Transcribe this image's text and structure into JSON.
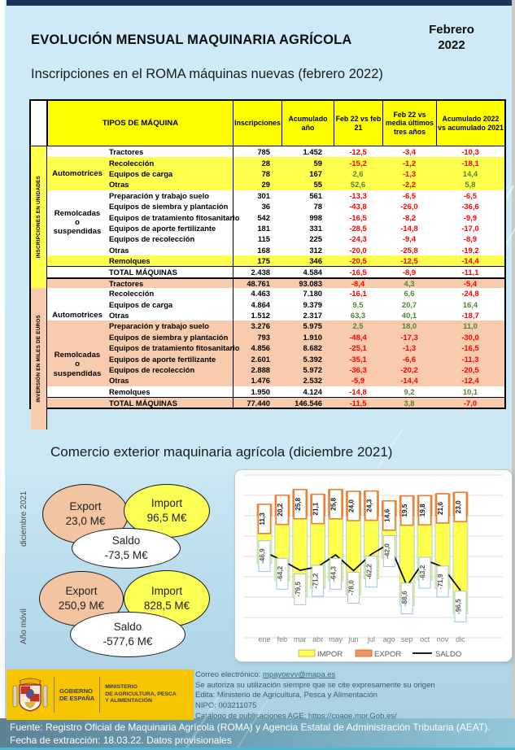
{
  "page": {
    "title": "EVOLUCIÓN MENSUAL MAQUINARIA AGRÍCOLA",
    "date": "Febrero\n2022",
    "subtitle": "Inscripciones en el ROMA máquinas nuevas (febrero 2022)"
  },
  "colors": {
    "header_yellow": "#ffff00",
    "row_yellow": "#ffff4d",
    "row_salmon": "#f8cbad",
    "negative": "#ff0000",
    "positive": "#548235",
    "impor_fill": "#ffff4d",
    "expor_stroke": "#ed7d31",
    "saldo_line": "#000000"
  },
  "table": {
    "col_headers": [
      "TIPOS DE MÁQUINA",
      "Inscripciones",
      "Acumulado año",
      "Feb 22 vs feb 21",
      "Feb 22 vs media últimos tres años",
      "Acumulado 2022 vs acumulado 2021"
    ],
    "sections": [
      {
        "band": "INSCRIPCIONES EN UNIDADES",
        "band_bg": "#ffff4d",
        "plain_color": "#ffffff",
        "tint_color": "#ffff4d",
        "groups": [
          {
            "label": "Automotrices",
            "from": 1,
            "span": 3
          },
          {
            "label": "Remolcadas\no\nsuspendidas",
            "from": 4,
            "span": 6
          }
        ],
        "rows": [
          {
            "name": "Tractores",
            "shade": "plain",
            "values": [
              "785",
              "1.452",
              "-12,5",
              "-3,4",
              "-10,3"
            ]
          },
          {
            "name": "Recolección",
            "shade": "tint",
            "values": [
              "28",
              "59",
              "-15,2",
              "-1,2",
              "-18,1"
            ]
          },
          {
            "name": "Equipos de carga",
            "shade": "tint",
            "values": [
              "78",
              "167",
              "2,6",
              "-1,3",
              "14,4"
            ]
          },
          {
            "name": "Otras",
            "shade": "tint",
            "values": [
              "29",
              "55",
              "52,6",
              "-2,2",
              "5,8"
            ]
          },
          {
            "name": "Preparación y trabajo suelo",
            "shade": "plain",
            "values": [
              "301",
              "561",
              "-13,3",
              "-6,5",
              "-6,5"
            ]
          },
          {
            "name": "Equipos de siembra y plantación",
            "shade": "plain",
            "values": [
              "36",
              "78",
              "-43,8",
              "-26,0",
              "-36,6"
            ]
          },
          {
            "name": "Equipos de tratamiento fitosanitario",
            "shade": "plain",
            "values": [
              "542",
              "998",
              "-16,5",
              "-8,2",
              "-9,9"
            ]
          },
          {
            "name": "Equipos de aporte fertilizante",
            "shade": "plain",
            "values": [
              "181",
              "331",
              "-28,5",
              "-14,8",
              "-17,0"
            ]
          },
          {
            "name": "Equipos de recolección",
            "shade": "plain",
            "values": [
              "115",
              "225",
              "-24,3",
              "-9,4",
              "-8,9"
            ]
          },
          {
            "name": "Otras",
            "shade": "plain",
            "values": [
              "168",
              "312",
              "-20,0",
              "-25,8",
              "-19,2"
            ]
          },
          {
            "name": "Remolques",
            "shade": "tint",
            "values": [
              "175",
              "346",
              "-20,5",
              "-12,5",
              "-14,4"
            ]
          }
        ],
        "total": {
          "name": "TOTAL MÁQUINAS",
          "shade": "plain",
          "values": [
            "2.438",
            "4.584",
            "-16,5",
            "-8,9",
            "-11,1"
          ]
        }
      },
      {
        "band": "INVERSIÓN EN MILES DE EUROS",
        "band_bg": "#f8cbad",
        "plain_color": "#ffffff",
        "tint_color": "#f8cbad",
        "groups": [
          {
            "label": "Automotrices",
            "from": 1,
            "span": 3
          },
          {
            "label": "Remolcadas\no\nsuspendidas",
            "from": 4,
            "span": 6
          }
        ],
        "rows": [
          {
            "name": "Tractores",
            "shade": "tint",
            "values": [
              "48.761",
              "93.083",
              "-8,4",
              "4,3",
              "-5,4"
            ]
          },
          {
            "name": "Recolección",
            "shade": "plain",
            "values": [
              "4.463",
              "7.180",
              "-16,1",
              "6,6",
              "-24,8"
            ]
          },
          {
            "name": "Equipos de carga",
            "shade": "plain",
            "values": [
              "4.864",
              "9.379",
              "9,5",
              "20,7",
              "16,4"
            ]
          },
          {
            "name": "Otras",
            "shade": "plain",
            "values": [
              "1.512",
              "2.317",
              "63,3",
              "40,1",
              "-18,7"
            ]
          },
          {
            "name": "Preparación y trabajo suelo",
            "shade": "tint",
            "values": [
              "3.276",
              "5.975",
              "2,5",
              "18,0",
              "11,0"
            ]
          },
          {
            "name": "Equipos de siembra y plantación",
            "shade": "tint",
            "values": [
              "793",
              "1.910",
              "-48,4",
              "-17,3",
              "-30,0"
            ]
          },
          {
            "name": "Equipos de tratamiento fitosanitario",
            "shade": "tint",
            "values": [
              "4.856",
              "8.682",
              "-25,1",
              "-1,3",
              "-16,5"
            ]
          },
          {
            "name": "Equipos de aporte fertilizante",
            "shade": "tint",
            "values": [
              "2.601",
              "5.392",
              "-35,1",
              "-6,6",
              "-11,3"
            ]
          },
          {
            "name": "Equipos de recolección",
            "shade": "tint",
            "values": [
              "2.888",
              "5.972",
              "-36,3",
              "-20,2",
              "-20,5"
            ]
          },
          {
            "name": "Otras",
            "shade": "tint",
            "values": [
              "1.476",
              "2.532",
              "-5,9",
              "-14,4",
              "-12,4"
            ]
          },
          {
            "name": "Remolques",
            "shade": "plain",
            "values": [
              "1.950",
              "4.124",
              "-14,8",
              "9,2",
              "10,1"
            ]
          }
        ],
        "total": {
          "name": "TOTAL MÁQUINAS",
          "shade": "tint",
          "values": [
            "77.440",
            "146.546",
            "-11,5",
            "3,8",
            "-7,0"
          ]
        }
      }
    ]
  },
  "trade": {
    "title": "Comercio exterior maquinaria agrícola (diciembre 2021)",
    "groups": [
      {
        "period": "diciembre 2021",
        "export": {
          "label": "Export",
          "value": "23,0 M€"
        },
        "import": {
          "label": "Import",
          "value": "96,5 M€"
        },
        "saldo": {
          "label": "Saldo",
          "value": "-73,5 M€"
        }
      },
      {
        "period": "Año móvil",
        "export": {
          "label": "Export",
          "value": "250,9 M€"
        },
        "import": {
          "label": "Import",
          "value": "828,5 M€"
        },
        "saldo": {
          "label": "Saldo",
          "value": "-577,6 M€"
        }
      }
    ]
  },
  "chart_data": {
    "type": "bar",
    "categories": [
      "ene",
      "feb",
      "mar",
      "abr",
      "may",
      "jun",
      "jul",
      "ago",
      "sep",
      "oct",
      "nov",
      "dic"
    ],
    "series": [
      {
        "name": "IMPOR",
        "type": "bar",
        "color": "#ffff4d",
        "values": [
          -46.9,
          -64.2,
          -79.5,
          -71.2,
          -64.3,
          -78.0,
          -62.2,
          -42.0,
          -88.6,
          -63.2,
          -71.9,
          -96.5
        ],
        "labels": [
          "-46,9",
          "-64,2",
          "-79,5",
          "-71,2",
          "-64,3",
          "-78,0",
          "-62,2",
          "-42,0",
          "-88,6",
          "-63,2",
          "-71,9",
          "-96,5"
        ]
      },
      {
        "name": "EXPOR",
        "type": "bar",
        "color": "#f0945a",
        "values": [
          11.3,
          20.2,
          25.8,
          21.1,
          25.8,
          24.0,
          24.3,
          14.6,
          19.5,
          19.8,
          21.6,
          23.0
        ],
        "labels": [
          "11,3",
          "20,2",
          "25,8",
          "21,1",
          "25,8",
          "24,0",
          "24,3",
          "14,6",
          "19,5",
          "19,8",
          "21,6",
          "23,0"
        ]
      },
      {
        "name": "SALDO",
        "type": "line",
        "color": "#000000",
        "values": [
          -35.6,
          -44.0,
          -53.7,
          -50.1,
          -38.5,
          -54.0,
          -37.9,
          -27.4,
          -69.1,
          -43.4,
          -50.3,
          -73.5
        ]
      }
    ],
    "ylim": [
      -120,
      40
    ],
    "grid": true,
    "gridline_step": 20,
    "legend_position": "bottom",
    "legend": [
      "IMPOR",
      "EXPOR",
      "SALDO"
    ]
  },
  "footer": {
    "logo": {
      "gov": "GOBIERNO\nDE ESPAÑA",
      "ministry": "MINISTERIO\nDE AGRICULTURA, PESCA\nY ALIMENTACIÓN"
    },
    "contact": {
      "email_label": "Correo electrónico: ",
      "email": "mpayoevv@mapa.es",
      "line2": "Se autoriza su utilización siempre que se cite expresamente su origen",
      "line3": "Edita: Ministerio de Agricultura, Pesca y Alimentación",
      "line4": "NIPO: 003211075",
      "catalog_label": "Catálogo de publicaciones AGE: ",
      "catalog_link": "https://cpage.mpr.Gob.es/"
    },
    "source": "Fuente: Registro Oficial de Maquinaria Agrícola (ROMA) y Agencia Estatal de Administración Tributaria (AEAT). Fecha de extracción: 18.03.22. Datos provisionales"
  }
}
